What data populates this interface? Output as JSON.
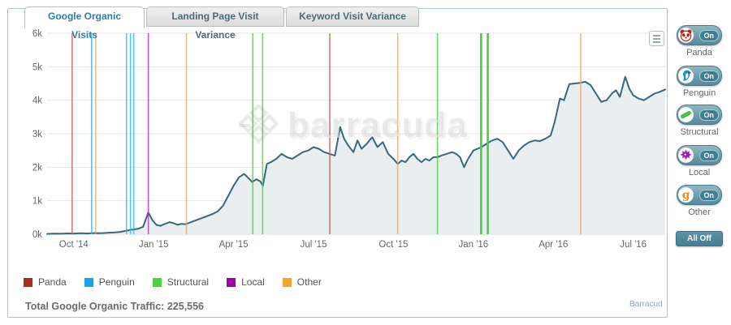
{
  "tabs": [
    {
      "label": "Google Organic Visits",
      "active": true
    },
    {
      "label": "Landing Page Visit Variance",
      "active": false
    },
    {
      "label": "Keyword Visit Variance",
      "active": false
    }
  ],
  "watermark_text": "barracuda",
  "sidebar": {
    "toggles": [
      {
        "id": "panda",
        "label": "Panda",
        "state": "On"
      },
      {
        "id": "penguin",
        "label": "Penguin",
        "state": "On"
      },
      {
        "id": "structural",
        "label": "Structural",
        "state": "On"
      },
      {
        "id": "local",
        "label": "Local",
        "state": "On"
      },
      {
        "id": "other",
        "label": "Other",
        "state": "On"
      }
    ],
    "all_off_label": "All Off"
  },
  "legend": [
    {
      "label": "Panda",
      "color": "#b3291c"
    },
    {
      "label": "Penguin",
      "color": "#18a3ef"
    },
    {
      "label": "Structural",
      "color": "#4ad440"
    },
    {
      "label": "Local",
      "color": "#a400a4"
    },
    {
      "label": "Other",
      "color": "#f5a52e"
    }
  ],
  "footer": {
    "total_label": "Total Google Organic Traffic:",
    "total_value": "225,556",
    "credits": "Barracud"
  },
  "chart_data": {
    "type": "area",
    "title": "Google Organic Visits",
    "ylabel": "Visits",
    "xlabel": "",
    "ylim": [
      0,
      6000
    ],
    "yticks": [
      {
        "value": 0,
        "label": "0k"
      },
      {
        "value": 1000,
        "label": "1k"
      },
      {
        "value": 2000,
        "label": "2k"
      },
      {
        "value": 3000,
        "label": "3k"
      },
      {
        "value": 4000,
        "label": "4k"
      },
      {
        "value": 5000,
        "label": "5k"
      },
      {
        "value": 6000,
        "label": "6k"
      }
    ],
    "xlim_months": [
      0,
      23.2
    ],
    "xticks": [
      {
        "m": 1,
        "label": "Oct '14"
      },
      {
        "m": 4,
        "label": "Jan '15"
      },
      {
        "m": 7,
        "label": "Apr '15"
      },
      {
        "m": 10,
        "label": "Jul '15"
      },
      {
        "m": 13,
        "label": "Oct '15"
      },
      {
        "m": 16,
        "label": "Jan '16"
      },
      {
        "m": 19,
        "label": "Apr '16"
      },
      {
        "m": 22,
        "label": "Jul '16"
      }
    ],
    "grid": true,
    "line_color": "#39687c",
    "area_fill": "#e9eef0",
    "series": [
      {
        "name": "Google Organic Visits",
        "points": [
          [
            0,
            10
          ],
          [
            0.25,
            20
          ],
          [
            0.5,
            15
          ],
          [
            0.75,
            25
          ],
          [
            1,
            20
          ],
          [
            1.25,
            30
          ],
          [
            1.5,
            25
          ],
          [
            1.75,
            35
          ],
          [
            2,
            30
          ],
          [
            2.25,
            40
          ],
          [
            2.5,
            50
          ],
          [
            2.75,
            70
          ],
          [
            3,
            110
          ],
          [
            3.2,
            140
          ],
          [
            3.4,
            160
          ],
          [
            3.6,
            220
          ],
          [
            3.8,
            650
          ],
          [
            3.95,
            420
          ],
          [
            4.1,
            280
          ],
          [
            4.25,
            250
          ],
          [
            4.4,
            300
          ],
          [
            4.6,
            360
          ],
          [
            4.75,
            330
          ],
          [
            4.9,
            280
          ],
          [
            5.05,
            310
          ],
          [
            5.2,
            300
          ],
          [
            5.4,
            360
          ],
          [
            5.6,
            420
          ],
          [
            5.8,
            480
          ],
          [
            6,
            540
          ],
          [
            6.2,
            600
          ],
          [
            6.4,
            680
          ],
          [
            6.6,
            850
          ],
          [
            6.8,
            1150
          ],
          [
            7,
            1450
          ],
          [
            7.2,
            1700
          ],
          [
            7.4,
            1800
          ],
          [
            7.55,
            1680
          ],
          [
            7.7,
            1560
          ],
          [
            7.85,
            1640
          ],
          [
            8,
            1580
          ],
          [
            8.1,
            1450
          ],
          [
            8.25,
            2100
          ],
          [
            8.4,
            2150
          ],
          [
            8.6,
            2250
          ],
          [
            8.8,
            2400
          ],
          [
            9,
            2300
          ],
          [
            9.2,
            2250
          ],
          [
            9.4,
            2350
          ],
          [
            9.6,
            2450
          ],
          [
            9.8,
            2500
          ],
          [
            10,
            2600
          ],
          [
            10.2,
            2550
          ],
          [
            10.4,
            2450
          ],
          [
            10.6,
            2400
          ],
          [
            10.8,
            2350
          ],
          [
            11,
            3200
          ],
          [
            11.15,
            2850
          ],
          [
            11.3,
            2650
          ],
          [
            11.5,
            2450
          ],
          [
            11.65,
            2800
          ],
          [
            11.8,
            2550
          ],
          [
            12,
            2700
          ],
          [
            12.2,
            2900
          ],
          [
            12.4,
            2600
          ],
          [
            12.6,
            2750
          ],
          [
            12.8,
            2400
          ],
          [
            13,
            2250
          ],
          [
            13.16,
            2100
          ],
          [
            13.3,
            2200
          ],
          [
            13.45,
            2150
          ],
          [
            13.6,
            2300
          ],
          [
            13.75,
            2400
          ],
          [
            13.9,
            2250
          ],
          [
            14.05,
            2150
          ],
          [
            14.2,
            2250
          ],
          [
            14.35,
            2200
          ],
          [
            14.5,
            2300
          ],
          [
            14.65,
            2300
          ],
          [
            14.8,
            2350
          ],
          [
            15,
            2400
          ],
          [
            15.2,
            2450
          ],
          [
            15.35,
            2400
          ],
          [
            15.5,
            2300
          ],
          [
            15.65,
            2000
          ],
          [
            15.8,
            2250
          ],
          [
            16,
            2500
          ],
          [
            16.15,
            2550
          ],
          [
            16.3,
            2600
          ],
          [
            16.5,
            2700
          ],
          [
            16.7,
            2800
          ],
          [
            16.9,
            2850
          ],
          [
            17.1,
            2750
          ],
          [
            17.3,
            2500
          ],
          [
            17.5,
            2250
          ],
          [
            17.7,
            2500
          ],
          [
            17.9,
            2650
          ],
          [
            18.1,
            2750
          ],
          [
            18.3,
            2800
          ],
          [
            18.5,
            2780
          ],
          [
            18.7,
            2850
          ],
          [
            18.9,
            2950
          ],
          [
            19.05,
            3350
          ],
          [
            19.25,
            4050
          ],
          [
            19.4,
            4000
          ],
          [
            19.6,
            4480
          ],
          [
            19.8,
            4500
          ],
          [
            20,
            4520
          ],
          [
            20.2,
            4550
          ],
          [
            20.4,
            4450
          ],
          [
            20.6,
            4200
          ],
          [
            20.8,
            3950
          ],
          [
            21,
            4000
          ],
          [
            21.2,
            4200
          ],
          [
            21.35,
            4300
          ],
          [
            21.5,
            4100
          ],
          [
            21.7,
            4700
          ],
          [
            21.85,
            4350
          ],
          [
            22,
            4150
          ],
          [
            22.2,
            4050
          ],
          [
            22.4,
            4000
          ],
          [
            22.6,
            4100
          ],
          [
            22.8,
            4200
          ],
          [
            23,
            4250
          ],
          [
            23.2,
            4320
          ]
        ]
      }
    ],
    "events": [
      {
        "type": "panda",
        "x_months": 0.94,
        "weight": 1
      },
      {
        "type": "penguin",
        "x_months": 1.67,
        "weight": 1
      },
      {
        "type": "other",
        "x_months": 1.82,
        "weight": 1
      },
      {
        "type": "penguin",
        "x_months": 2.98,
        "weight": 1
      },
      {
        "type": "penguin",
        "x_months": 3.13,
        "weight": 1
      },
      {
        "type": "penguin",
        "x_months": 3.25,
        "weight": 1
      },
      {
        "type": "local",
        "x_months": 3.8,
        "weight": 1
      },
      {
        "type": "other",
        "x_months": 5.23,
        "weight": 1
      },
      {
        "type": "structural",
        "x_months": 7.72,
        "weight": 1
      },
      {
        "type": "structural",
        "x_months": 8.09,
        "weight": 1
      },
      {
        "type": "panda",
        "x_months": 10.61,
        "weight": 1
      },
      {
        "type": "other",
        "x_months": 13.16,
        "weight": 1
      },
      {
        "type": "structural",
        "x_months": 14.65,
        "weight": 1
      },
      {
        "type": "structural",
        "x_months": 16.29,
        "weight": 2
      },
      {
        "type": "structural",
        "x_months": 16.54,
        "weight": 2
      },
      {
        "type": "other",
        "x_months": 20.03,
        "weight": 1
      }
    ],
    "event_colors": {
      "panda": "#cf5a45",
      "penguin": "#35b1f2",
      "structural": "#45d23c",
      "local": "#bb2dbb",
      "other": "#f5a94f"
    }
  }
}
